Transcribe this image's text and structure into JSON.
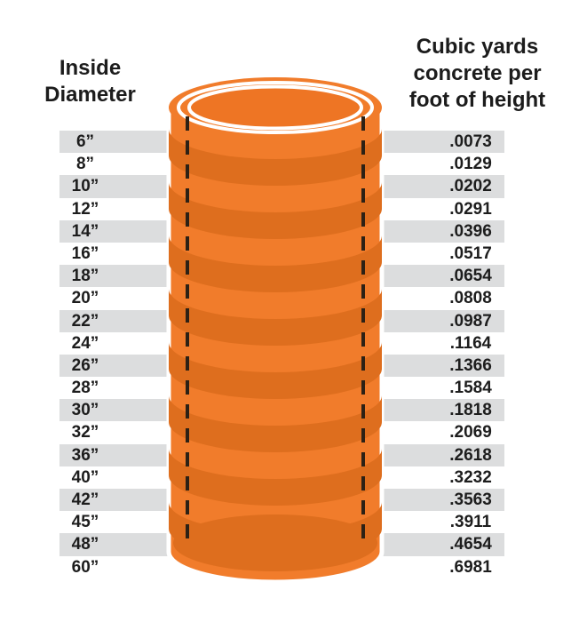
{
  "left_header": {
    "text": "Inside\nDiameter"
  },
  "right_header": {
    "text": "Cubic yards\nconcrete per\nfoot of height"
  },
  "rows": [
    {
      "diameter": "6”",
      "value": ".0073"
    },
    {
      "diameter": "8”",
      "value": ".0129"
    },
    {
      "diameter": "10”",
      "value": ".0202"
    },
    {
      "diameter": "12”",
      "value": ".0291"
    },
    {
      "diameter": "14”",
      "value": ".0396"
    },
    {
      "diameter": "16”",
      "value": ".0517"
    },
    {
      "diameter": "18”",
      "value": ".0654"
    },
    {
      "diameter": "20”",
      "value": ".0808"
    },
    {
      "diameter": "22”",
      "value": ".0987"
    },
    {
      "diameter": "24”",
      "value": ".1164"
    },
    {
      "diameter": "26”",
      "value": ".1366"
    },
    {
      "diameter": "28”",
      "value": ".1584"
    },
    {
      "diameter": "30”",
      "value": ".1818"
    },
    {
      "diameter": "32”",
      "value": ".2069"
    },
    {
      "diameter": "36”",
      "value": ".2618"
    },
    {
      "diameter": "40”",
      "value": ".3232"
    },
    {
      "diameter": "42”",
      "value": ".3563"
    },
    {
      "diameter": "45”",
      "value": ".3911"
    },
    {
      "diameter": "48”",
      "value": ".4654"
    },
    {
      "diameter": "60”",
      "value": ".6981"
    }
  ],
  "colors": {
    "stripe_gray": "#dcddde",
    "tube_light_orange": "#f17c2b",
    "tube_dark_orange": "#de6e1e",
    "tube_inner_orange": "#ee7524",
    "dashed_line": "#2d2115",
    "text": "#1c1c1c",
    "ring_white": "#ffffff"
  },
  "illustration": {
    "name": "concrete-form-tube",
    "description": "orange cylindrical concrete form with dashed inside-diameter lines"
  },
  "chart_data": {
    "type": "table",
    "columns": [
      "Inside Diameter",
      "Cubic yards concrete per foot of height"
    ],
    "rows": [
      [
        "6\"",
        0.0073
      ],
      [
        "8\"",
        0.0129
      ],
      [
        "10\"",
        0.0202
      ],
      [
        "12\"",
        0.0291
      ],
      [
        "14\"",
        0.0396
      ],
      [
        "16\"",
        0.0517
      ],
      [
        "18\"",
        0.0654
      ],
      [
        "20\"",
        0.0808
      ],
      [
        "22\"",
        0.0987
      ],
      [
        "24\"",
        0.1164
      ],
      [
        "26\"",
        0.1366
      ],
      [
        "28\"",
        0.1584
      ],
      [
        "30\"",
        0.1818
      ],
      [
        "32\"",
        0.2069
      ],
      [
        "36\"",
        0.2618
      ],
      [
        "40\"",
        0.3232
      ],
      [
        "42\"",
        0.3563
      ],
      [
        "45\"",
        0.3911
      ],
      [
        "48\"",
        0.4654
      ],
      [
        "60\"",
        0.6981
      ]
    ],
    "title": "Cubic yards of concrete per foot of height by inside diameter",
    "legend": "none",
    "grid": "alternating row shading"
  }
}
